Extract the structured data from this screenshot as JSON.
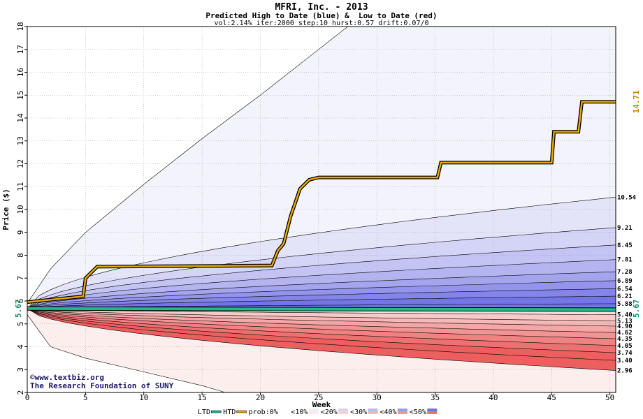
{
  "header": {
    "title": "MFRI, Inc. - 2013",
    "subtitle": "Predicted High to Date (blue) &  Low to Date (red)",
    "params": "vol:2.14% iter:2000 step:10 hurst:0.57 drift:0.07/0"
  },
  "watermark": {
    "line1": "©www.textbiz.org",
    "line2": "The Research Foundation of SUNY"
  },
  "chart_data": {
    "type": "line",
    "xlabel": "Week",
    "ylabel": "Price ($)",
    "xlim": [
      0,
      50.5
    ],
    "ylim": [
      2,
      18
    ],
    "x_ticks": [
      0,
      5,
      10,
      15,
      20,
      25,
      30,
      35,
      40,
      45,
      50
    ],
    "y_ticks": [
      2,
      3,
      4,
      5,
      6,
      7,
      8,
      9,
      10,
      11,
      12,
      13,
      14,
      15,
      16,
      17,
      18
    ],
    "grid": true,
    "current_price": 5.67,
    "current_price_label": "5.67",
    "final_high_label": "14.71",
    "outer_bounds": {
      "upper": [
        [
          0,
          5.9
        ],
        [
          2,
          7.4
        ],
        [
          5,
          9.0
        ],
        [
          10,
          11.1
        ],
        [
          15,
          13.1
        ],
        [
          20,
          15.0
        ],
        [
          25,
          17.0
        ],
        [
          27.5,
          18.0
        ]
      ],
      "lower": [
        [
          0,
          5.4
        ],
        [
          2,
          4.0
        ],
        [
          5,
          3.5
        ],
        [
          10,
          2.9
        ],
        [
          15,
          2.3
        ],
        [
          17,
          2.0
        ]
      ]
    },
    "high_quantiles": [
      {
        "label": "10.54",
        "end": 10.54
      },
      {
        "label": "9.21",
        "end": 9.21
      },
      {
        "label": "8.45",
        "end": 8.45
      },
      {
        "label": "7.81",
        "end": 7.81
      },
      {
        "label": "7.28",
        "end": 7.28
      },
      {
        "label": "6.89",
        "end": 6.89
      },
      {
        "label": "6.54",
        "end": 6.54
      },
      {
        "label": "6.21",
        "end": 6.21
      },
      {
        "label": "5.88",
        "end": 5.88
      }
    ],
    "low_quantiles": [
      {
        "label": "5.40",
        "end": 5.4
      },
      {
        "label": "5.13",
        "end": 5.13
      },
      {
        "label": "4.90",
        "end": 4.9
      },
      {
        "label": "4.62",
        "end": 4.62
      },
      {
        "label": "4.35",
        "end": 4.35
      },
      {
        "label": "4.05",
        "end": 4.05
      },
      {
        "label": "3.74",
        "end": 3.74
      },
      {
        "label": "3.40",
        "end": 3.4
      },
      {
        "label": "2.96",
        "end": 2.96
      }
    ],
    "htd_actual": [
      [
        0,
        5.95
      ],
      [
        4.8,
        6.2
      ],
      [
        5,
        7.0
      ],
      [
        6,
        7.5
      ],
      [
        21,
        7.55
      ],
      [
        21.5,
        8.2
      ],
      [
        22,
        8.5
      ],
      [
        22.6,
        9.7
      ],
      [
        23.4,
        10.9
      ],
      [
        24.2,
        11.3
      ],
      [
        25,
        11.4
      ],
      [
        35.2,
        11.4
      ],
      [
        35.5,
        12.05
      ],
      [
        45,
        12.05
      ],
      [
        45.2,
        13.4
      ],
      [
        47.3,
        13.4
      ],
      [
        47.6,
        14.71
      ],
      [
        50.5,
        14.71
      ]
    ],
    "ltd_actual": [
      [
        0,
        5.67
      ],
      [
        50.5,
        5.62
      ]
    ],
    "legend": {
      "items": [
        {
          "label": "LTD",
          "color": "#22bb88"
        },
        {
          "label": "HTD",
          "color": "#e8a800"
        },
        {
          "label": "prob:0%",
          "color": "#ffffff"
        },
        {
          "label": "<10%",
          "color": "#eeeefb"
        },
        {
          "label": "<20%",
          "color": "#d4d4f7"
        },
        {
          "label": "<30%",
          "color": "#b8b8f2"
        },
        {
          "label": "<40%",
          "color": "#9b9bee"
        },
        {
          "label": "<50%",
          "color": "#7373ea"
        }
      ],
      "low_swatches": [
        "#fde9e9",
        "#fbd0d0",
        "#f8b3b3",
        "#f59595",
        "#f07070"
      ]
    },
    "colors": {
      "blue_bands": [
        "#f3f3fc",
        "#e4e4f9",
        "#d4d4f7",
        "#c4c4f4",
        "#b4b4f1",
        "#a4a4ef",
        "#9494ed",
        "#8484eb",
        "#7474e9"
      ],
      "red_bands": [
        "#fdeeee",
        "#fbdcdc",
        "#f9caca",
        "#f7b8b8",
        "#f5a6a6",
        "#f39494",
        "#f18282",
        "#ef7070",
        "#ed5e5e"
      ],
      "htd_line": "#e8a800",
      "ltd_line": "#22bb88",
      "price_label": "#1a8a6a",
      "final_label": "#b88a00"
    }
  }
}
